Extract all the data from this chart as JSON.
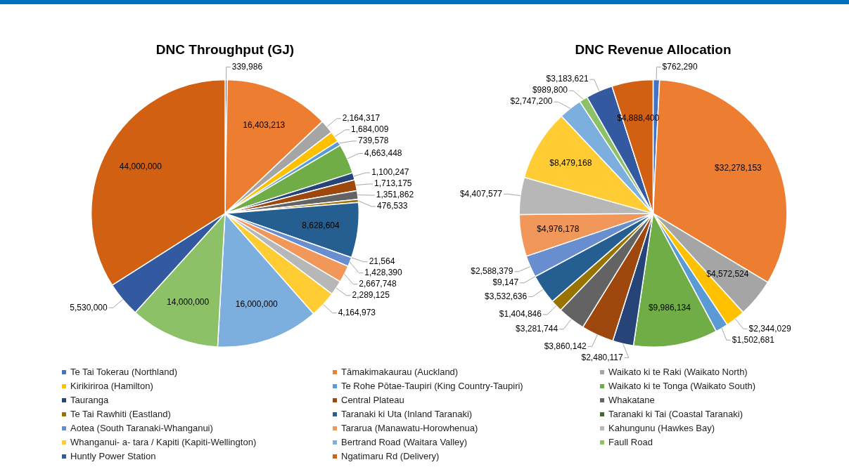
{
  "chart_data": [
    {
      "type": "pie",
      "title": "DNC Throughput (GJ)",
      "legend": "bottom",
      "categories": [
        "Te Tai Tokerau (Northland)",
        "Tāmakimakaurau (Auckland)",
        "Waikato ki te Raki (Waikato North)",
        "Kirikiriroa (Hamilton)",
        "Te Rohe Pōtae-Taupiri (King Country-Taupiri)",
        "Waikato ki te Tonga (Waikato South)",
        "Tauranga",
        "Central Plateau",
        "Whakatane",
        "Te Tai Rawhiti (Eastland)",
        "Taranaki ki Uta (Inland Taranaki)",
        "Taranaki ki Tai (Coastal Taranaki)",
        "Aotea (South Taranaki-Whanganui)",
        "Tararua (Manawatu-Horowhenua)",
        "Kahungunu (Hawkes Bay)",
        "Whanganui- a- tara / Kapiti (Kapiti-Wellington)",
        "Bertrand Road (Waitara Valley)",
        "Faull Road",
        "Huntly Power Station",
        "Ngatimaru Rd (Delivery)"
      ],
      "values": [
        339986,
        16403213,
        2164317,
        1684009,
        739578,
        4663448,
        1100247,
        1713175,
        1351862,
        476533,
        8628604,
        21564,
        1428390,
        2667748,
        2289125,
        4164973,
        16000000,
        14000000,
        5530000,
        44000000
      ],
      "value_labels": [
        "339,986",
        "16,403,213",
        "2,164,317",
        "1,684,009",
        "739,578",
        "4,663,448",
        "1,100,247",
        "1,713,175",
        "1,351,862",
        "476,533",
        "8,628,604",
        "21,564",
        "1,428,390",
        "2,667,748",
        "2,289,125",
        "4,164,973",
        "16,000,000",
        "14,000,000",
        "5,530,000",
        "44,000,000"
      ],
      "colors": [
        "#4472c4",
        "#ed7d31",
        "#a5a5a5",
        "#ffc000",
        "#5b9bd5",
        "#70ad47",
        "#264478",
        "#9e480e",
        "#636363",
        "#997300",
        "#255e91",
        "#43682b",
        "#698ed0",
        "#f1975a",
        "#b7b7b7",
        "#ffcd33",
        "#7cafdd",
        "#8cc168",
        "#335aa1",
        "#d26012"
      ]
    },
    {
      "type": "pie",
      "title": "DNC Revenue Allocation",
      "categories": [
        null,
        null,
        null,
        null,
        null,
        null,
        null,
        null,
        null,
        null,
        null,
        null,
        null,
        null,
        null,
        null,
        null,
        null,
        null,
        null
      ],
      "values": [
        762290,
        32278153,
        4572524,
        2344029,
        1502681,
        9986134,
        2480117,
        3860142,
        3281744,
        1404846,
        3532636,
        9147,
        2588379,
        4976178,
        4407577,
        8479168,
        2747200,
        989800,
        3183621,
        4888400
      ],
      "value_labels": [
        "$762,290",
        "$32,278,153",
        "$4,572,524",
        "$2,344,029",
        "$1,502,681",
        "$9,986,134",
        "$2,480,117",
        "$3,860,142",
        "$3,281,744",
        "$1,404,846",
        "$3,532,636",
        "$9,147",
        "$2,588,379",
        "$4,976,178",
        "$4,407,577",
        "$8,479,168",
        "$2,747,200",
        "$989,800",
        "$3,183,621",
        "$4,888,400"
      ],
      "colors": [
        "#4472c4",
        "#ed7d31",
        "#a5a5a5",
        "#ffc000",
        "#5b9bd5",
        "#70ad47",
        "#264478",
        "#9e480e",
        "#636363",
        "#997300",
        "#255e91",
        "#43682b",
        "#698ed0",
        "#f1975a",
        "#b7b7b7",
        "#ffcd33",
        "#7cafdd",
        "#8cc168",
        "#335aa1",
        "#d26012"
      ]
    }
  ]
}
